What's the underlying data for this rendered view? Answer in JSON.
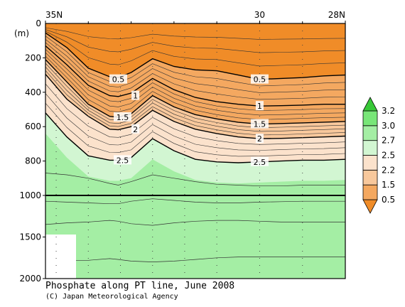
{
  "chart_data": {
    "type": "heatmap",
    "title": "Phosphate along PT line, June 2008",
    "credit": "(C) Japan Meteorological Agency",
    "y_unit_label": "(m)",
    "x_tick_labels": [
      "35N",
      "30",
      "28N"
    ],
    "x_ticks": [
      35,
      30,
      28
    ],
    "xlim": [
      35,
      28
    ],
    "station_lat": [
      34.75,
      34.0,
      33.25,
      32.5,
      31.75,
      31.0,
      30.0,
      29.0
    ],
    "y_upper_ticks": [
      "0",
      "200",
      "400",
      "600",
      "800",
      "1000"
    ],
    "y_lower_ticks": [
      "1500",
      "2000"
    ],
    "ylim_upper": [
      0,
      1000
    ],
    "ylim_lower": [
      1000,
      2000
    ],
    "colorbar": {
      "levels": [
        "0.5",
        "1.5",
        "2.2",
        "2.5",
        "2.7",
        "3.0",
        "3.2"
      ],
      "colors": [
        "#f08c28",
        "#f4a860",
        "#f8c89c",
        "#fbe2cc",
        "#d2f6d2",
        "#a4eea4",
        "#78e678",
        "#38c838"
      ]
    },
    "contour_labels": [
      {
        "text": "0.5",
        "lat": 33.3,
        "depth": 325
      },
      {
        "text": "1",
        "lat": 32.9,
        "depth": 420
      },
      {
        "text": "1.5",
        "lat": 33.2,
        "depth": 545
      },
      {
        "text": "2",
        "lat": 32.9,
        "depth": 615
      },
      {
        "text": "2.5",
        "lat": 33.2,
        "depth": 795
      },
      {
        "text": "0.5",
        "lat": 30.0,
        "depth": 325
      },
      {
        "text": "1",
        "lat": 30.0,
        "depth": 480
      },
      {
        "text": "1.5",
        "lat": 30.0,
        "depth": 585
      },
      {
        "text": "2",
        "lat": 30.0,
        "depth": 670
      },
      {
        "text": "2.5",
        "lat": 30.0,
        "depth": 805
      }
    ],
    "isolines": {
      "lat": [
        35.0,
        34.5,
        34.0,
        33.5,
        33.3,
        33.0,
        32.5,
        32.0,
        31.5,
        31.0,
        30.5,
        30.0,
        29.5,
        29.0,
        28.5,
        28.0
      ],
      "series": [
        {
          "name": "0.5",
          "depth": [
            55,
            140,
            260,
            310,
            315,
            285,
            205,
            250,
            270,
            275,
            300,
            325,
            320,
            315,
            305,
            300
          ]
        },
        {
          "name": "1",
          "depth": [
            130,
            240,
            360,
            420,
            425,
            405,
            320,
            385,
            430,
            455,
            470,
            480,
            478,
            475,
            470,
            470
          ]
        },
        {
          "name": "1.5",
          "depth": [
            210,
            340,
            470,
            540,
            545,
            525,
            420,
            485,
            530,
            555,
            575,
            585,
            582,
            578,
            574,
            570
          ]
        },
        {
          "name": "2",
          "depth": [
            295,
            440,
            540,
            615,
            618,
            600,
            505,
            570,
            615,
            640,
            660,
            670,
            668,
            664,
            660,
            655
          ]
        },
        {
          "name": "2.5",
          "depth": [
            520,
            660,
            770,
            795,
            795,
            780,
            670,
            740,
            790,
            805,
            810,
            805,
            800,
            795,
            795,
            790
          ]
        }
      ]
    }
  }
}
